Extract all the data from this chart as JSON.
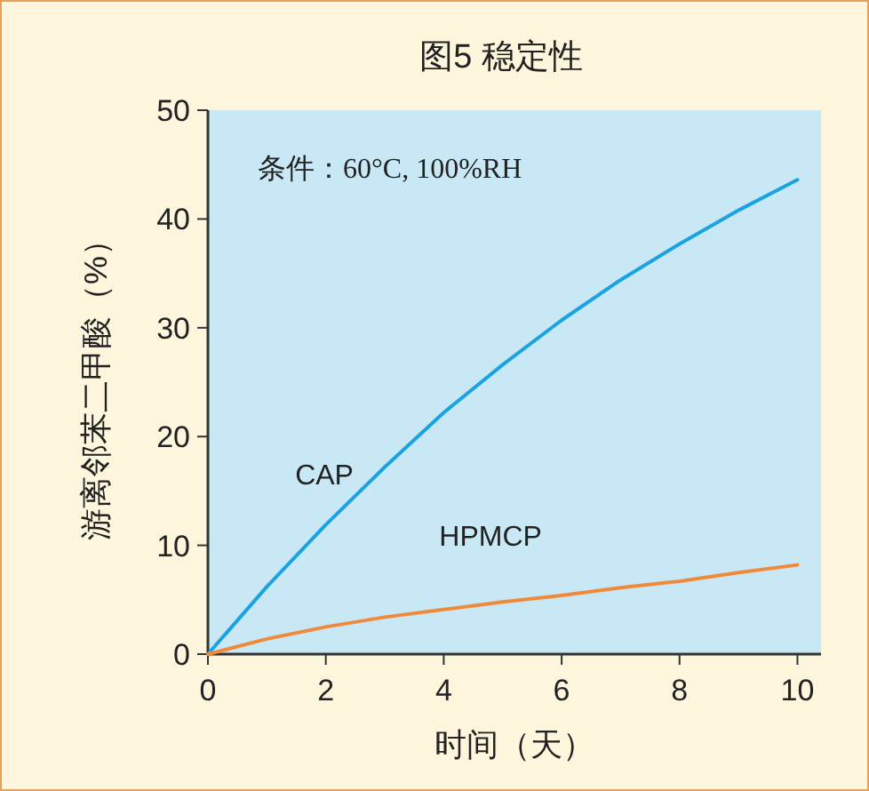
{
  "chart_data": {
    "type": "line",
    "title": "图5 稳定性",
    "xlabel": "时间（天）",
    "ylabel": "游离邻苯二甲酸（%）",
    "x": [
      0,
      1,
      2,
      3,
      4,
      5,
      6,
      7,
      8,
      9,
      10
    ],
    "series": [
      {
        "name": "CAP",
        "color": "#1aa3e0",
        "values": [
          0,
          6.2,
          11.9,
          17.2,
          22.2,
          26.6,
          30.7,
          34.4,
          37.7,
          40.8,
          43.6
        ]
      },
      {
        "name": "HPMCP",
        "color": "#f08a3a",
        "values": [
          0,
          1.4,
          2.5,
          3.4,
          4.1,
          4.8,
          5.4,
          6.1,
          6.7,
          7.5,
          8.2
        ]
      }
    ],
    "xlim": [
      0,
      10.4
    ],
    "ylim": [
      0,
      50
    ],
    "xticks": [
      0,
      2,
      4,
      6,
      8,
      10
    ],
    "yticks": [
      0,
      10,
      20,
      30,
      40,
      50
    ],
    "annotations": [
      "条件：60°C, 100%RH"
    ],
    "grid": false
  }
}
